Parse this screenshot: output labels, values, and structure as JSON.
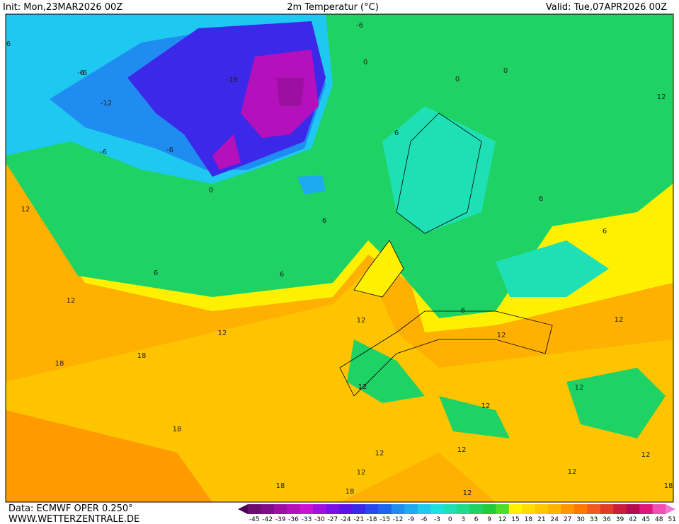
{
  "header": {
    "init": "Init: Mon,23MAR2026 00Z",
    "title": "2m Temperatur (°C)",
    "valid": "Valid: Tue,07APR2026 00Z"
  },
  "footer": {
    "source": "Data: ECMWF OPER 0.250°",
    "site": "WWW.WETTERZENTRALE.DE"
  },
  "colorbar": {
    "labels": [
      "-45",
      "-42",
      "-39",
      "-36",
      "-33",
      "-30",
      "-27",
      "-24",
      "-21",
      "-18",
      "-15",
      "-12",
      "-9",
      "-6",
      "-3",
      "0",
      "3",
      "6",
      "9",
      "12",
      "15",
      "18",
      "21",
      "24",
      "27",
      "30",
      "33",
      "36",
      "39",
      "42",
      "45",
      "48",
      "51"
    ],
    "colors": [
      "#6a0d6f",
      "#800d86",
      "#9c0fa0",
      "#b410bb",
      "#c814d2",
      "#a010e0",
      "#7a10e8",
      "#5a14e8",
      "#3c28e8",
      "#2848f0",
      "#1e64f0",
      "#1e8cf0",
      "#1eaaf0",
      "#1ec8f0",
      "#1ee0e0",
      "#1ee0b4",
      "#1edc8c",
      "#1ed264",
      "#1ecc3c",
      "#50dc28",
      "#fff000",
      "#ffdc00",
      "#ffc800",
      "#ffb400",
      "#ff9600",
      "#ff7800",
      "#f05a1e",
      "#e03c28",
      "#c81e3c",
      "#b40a50",
      "#e0147a",
      "#f050b4"
    ],
    "low_color": "#4b0058",
    "high_color": "#f078d2"
  },
  "map": {
    "contour_labels": [
      "6",
      "-6",
      "-6",
      "-12",
      "-6",
      "-6",
      "-18",
      "-6",
      "0",
      "0",
      "0",
      "6",
      "6",
      "12",
      "12",
      "12",
      "6",
      "6",
      "6",
      "12",
      "12",
      "18",
      "18",
      "18",
      "12",
      "12",
      "12",
      "12",
      "12",
      "12",
      "18",
      "18",
      "18",
      "12",
      "6",
      "12",
      "12",
      "12",
      "12",
      "6",
      "0"
    ]
  }
}
